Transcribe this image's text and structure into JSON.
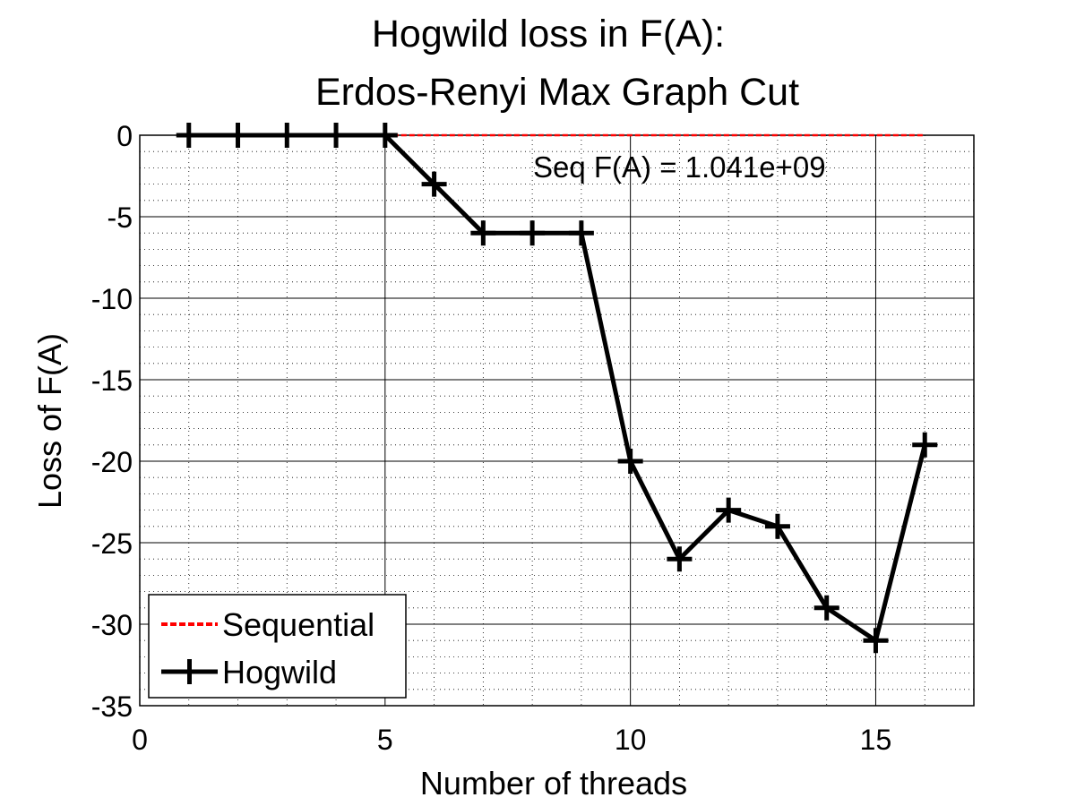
{
  "chart_data": {
    "type": "line",
    "title": [
      "Hogwild loss in F(A):",
      "Erdos-Renyi Max Graph Cut"
    ],
    "xlabel": "Number of threads",
    "ylabel": "Loss of F(A)",
    "xlim": [
      0,
      17
    ],
    "ylim": [
      -35,
      0
    ],
    "xticks": [
      0,
      5,
      10,
      15
    ],
    "yticks": [
      0,
      -5,
      -10,
      -15,
      -20,
      -25,
      -30,
      -35
    ],
    "grid": true,
    "legend_position": "bottom-left",
    "annotation": "Seq F(A) = 1.041e+09",
    "series": [
      {
        "name": "Sequential",
        "color": "#ff0000",
        "style": "dashed",
        "x": [
          5,
          16
        ],
        "y": [
          0,
          0
        ]
      },
      {
        "name": "Hogwild",
        "color": "#000000",
        "style": "solid",
        "marker": "plus",
        "x": [
          1,
          2,
          3,
          4,
          5,
          6,
          7,
          8,
          9,
          10,
          11,
          12,
          13,
          14,
          15,
          16
        ],
        "y": [
          0,
          0,
          0,
          0,
          0,
          -3,
          -6,
          -6,
          -6,
          -20,
          -26,
          -23,
          -24,
          -29,
          -31,
          -19
        ]
      }
    ]
  }
}
